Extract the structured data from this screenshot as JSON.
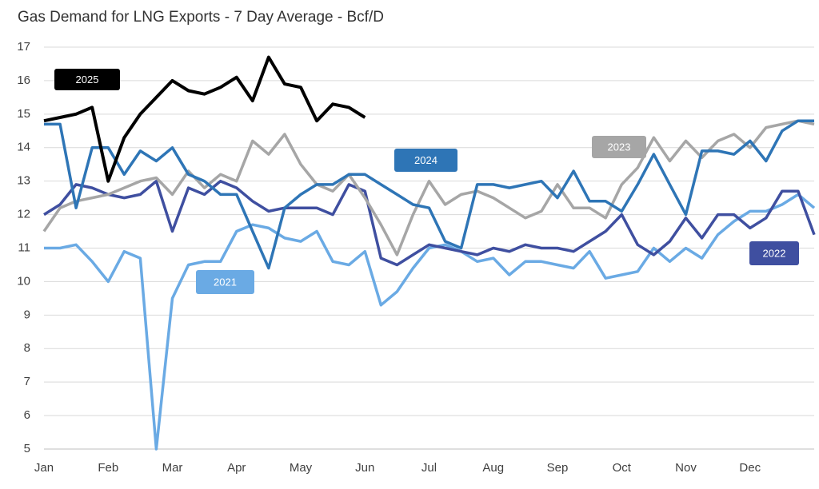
{
  "chart_data": {
    "type": "line",
    "title": "Gas Demand for LNG Exports - 7 Day Average - Bcf/D",
    "categories": [
      "Jan",
      null,
      null,
      null,
      "Feb",
      null,
      null,
      null,
      "Mar",
      null,
      null,
      null,
      "Apr",
      null,
      null,
      null,
      "May",
      null,
      null,
      null,
      "Jun",
      null,
      null,
      null,
      "Jul",
      null,
      null,
      null,
      "Aug",
      null,
      null,
      null,
      "Sep",
      null,
      null,
      null,
      "Oct",
      null,
      null,
      null,
      "Nov",
      null,
      null,
      null,
      "Dec",
      null,
      null,
      null,
      null
    ],
    "ylim": [
      5,
      17
    ],
    "yticks": [
      5,
      6,
      7,
      8,
      9,
      10,
      11,
      12,
      13,
      14,
      15,
      16,
      17
    ],
    "grid": true,
    "series": [
      {
        "name": "2021",
        "color": "#6aaae4",
        "values": [
          11.0,
          11.0,
          11.1,
          10.6,
          10.0,
          10.9,
          10.7,
          5.0,
          9.5,
          10.5,
          10.6,
          10.6,
          11.5,
          11.7,
          11.6,
          11.3,
          11.2,
          11.5,
          10.6,
          10.5,
          10.9,
          9.3,
          9.7,
          10.4,
          11.0,
          11.1,
          10.9,
          10.6,
          10.7,
          10.2,
          10.6,
          10.6,
          10.5,
          10.4,
          10.9,
          10.1,
          10.2,
          10.3,
          11.0,
          10.6,
          11.0,
          10.7,
          11.4,
          11.8,
          12.1,
          12.1,
          12.3,
          12.6,
          12.2
        ]
      },
      {
        "name": "2022",
        "color": "#3f4fa0",
        "values": [
          12.0,
          12.3,
          12.9,
          12.8,
          12.6,
          12.5,
          12.6,
          13.0,
          11.5,
          12.8,
          12.6,
          13.0,
          12.8,
          12.4,
          12.1,
          12.2,
          12.2,
          12.2,
          12.0,
          12.9,
          12.7,
          10.7,
          10.5,
          10.8,
          11.1,
          11.0,
          10.9,
          10.8,
          11.0,
          10.9,
          11.1,
          11.0,
          11.0,
          10.9,
          11.2,
          11.5,
          12.0,
          11.1,
          10.8,
          11.2,
          11.9,
          11.3,
          12.0,
          12.0,
          11.6,
          11.9,
          12.7,
          12.7,
          11.4
        ]
      },
      {
        "name": "2023",
        "color": "#a6a6a6",
        "values": [
          11.5,
          12.2,
          12.4,
          12.5,
          12.6,
          12.8,
          13.0,
          13.1,
          12.6,
          13.3,
          12.8,
          13.2,
          13.0,
          14.2,
          13.8,
          14.4,
          13.5,
          12.9,
          12.7,
          13.2,
          12.5,
          11.7,
          10.8,
          12.0,
          13.0,
          12.3,
          12.6,
          12.7,
          12.5,
          12.2,
          11.9,
          12.1,
          12.9,
          12.2,
          12.2,
          11.9,
          12.9,
          13.4,
          14.3,
          13.6,
          14.2,
          13.7,
          14.2,
          14.4,
          14.0,
          14.6,
          14.7,
          14.8,
          14.7
        ]
      },
      {
        "name": "2024",
        "color": "#2e75b6",
        "values": [
          14.7,
          14.7,
          12.2,
          14.0,
          14.0,
          13.2,
          13.9,
          13.6,
          14.0,
          13.2,
          13.0,
          12.6,
          12.6,
          11.5,
          10.4,
          12.2,
          12.6,
          12.9,
          12.9,
          13.2,
          13.2,
          12.9,
          12.6,
          12.3,
          12.2,
          11.2,
          11.0,
          12.9,
          12.9,
          12.8,
          12.9,
          13.0,
          12.5,
          13.3,
          12.4,
          12.4,
          12.1,
          12.9,
          13.8,
          12.9,
          12.0,
          13.9,
          13.9,
          13.8,
          14.2,
          13.6,
          14.5,
          14.8,
          14.8
        ]
      },
      {
        "name": "2025",
        "color": "#000000",
        "values": [
          14.8,
          14.9,
          15.0,
          15.2,
          13.0,
          14.3,
          15.0,
          15.5,
          16.0,
          15.7,
          15.6,
          15.8,
          16.1,
          15.4,
          16.7,
          15.9,
          15.8,
          14.8,
          15.3,
          15.2,
          14.9,
          null,
          null,
          null,
          null,
          null,
          null,
          null,
          null,
          null,
          null,
          null,
          null,
          null,
          null,
          null,
          null,
          null,
          null,
          null,
          null,
          null,
          null,
          null,
          null,
          null,
          null,
          null,
          null
        ]
      }
    ]
  }
}
